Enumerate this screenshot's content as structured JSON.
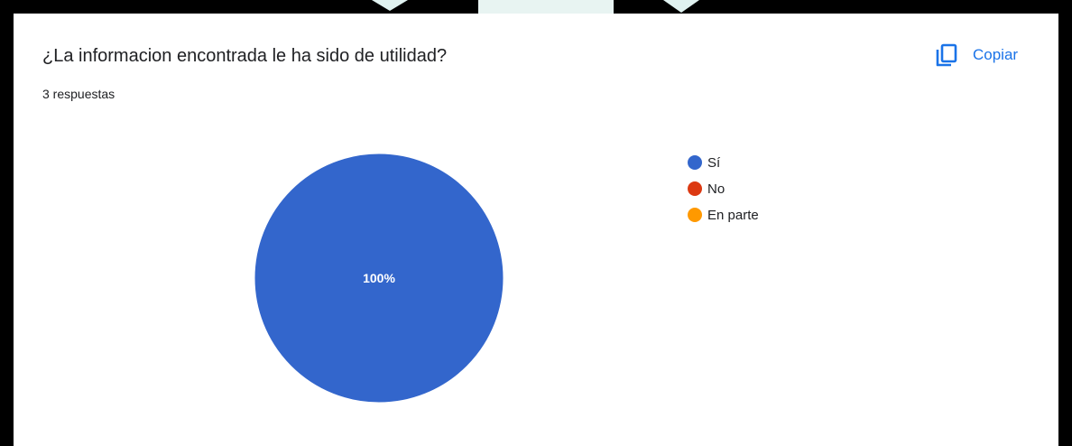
{
  "question": {
    "title": "¿La informacion encontrada le ha sido de utilidad?",
    "response_count": "3 respuestas"
  },
  "toolbar": {
    "copy_label": "Copiar",
    "copy_icon": "copy-icon"
  },
  "colors": {
    "accent": "#1a73e8",
    "frame": "#000000",
    "watermark": "#e0f2f0"
  },
  "chart_data": {
    "type": "pie",
    "categories": [
      "Sí",
      "No",
      "En parte"
    ],
    "values": [
      100,
      0,
      0
    ],
    "colors": [
      "#3366cc",
      "#dc3912",
      "#ff9900"
    ],
    "slice_labels": [
      "100%",
      "",
      ""
    ],
    "legend_position": "right"
  }
}
